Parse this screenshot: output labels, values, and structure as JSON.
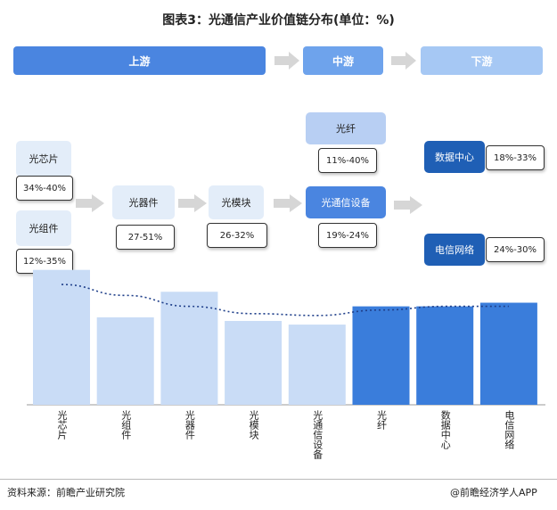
{
  "title": "图表3：光通信产业价值链分布(单位：%)",
  "stages": {
    "upstream": "上游",
    "midstream": "中游",
    "downstream": "下游"
  },
  "cards": {
    "chip": {
      "label": "光芯片",
      "range": "34%-40%"
    },
    "component": {
      "label": "光组件",
      "range": "12%-35%"
    },
    "device": {
      "label": "光器件",
      "range": "27-51%"
    },
    "module": {
      "label": "光模块",
      "range": "26-32%"
    },
    "fiber": {
      "label": "光纤",
      "range": "11%-40%"
    },
    "equipment": {
      "label": "光通信设备",
      "range": "19%-24%"
    },
    "datacenter": {
      "label": "数据中心",
      "range": "18%-33%"
    },
    "telecom": {
      "label": "电信网络",
      "range": "24%-30%"
    }
  },
  "chart_data": {
    "type": "bar",
    "categories": [
      "光芯片",
      "光组件",
      "光器件",
      "光模块",
      "光通信设备",
      "光纤",
      "数据中心",
      "电信网络"
    ],
    "values": [
      37,
      24,
      31,
      23,
      22,
      27,
      27,
      28
    ],
    "colors": [
      "#c9dcf6",
      "#c9dcf6",
      "#c9dcf6",
      "#c9dcf6",
      "#c9dcf6",
      "#3a7ddb",
      "#3a7ddb",
      "#3a7ddb"
    ],
    "trend": [
      33,
      30,
      27,
      25,
      24.5,
      26,
      27,
      27
    ],
    "ylim": [
      0,
      45
    ]
  },
  "footer": {
    "source": "资料来源：前瞻产业研究院",
    "brand": "@前瞻经济学人APP"
  }
}
